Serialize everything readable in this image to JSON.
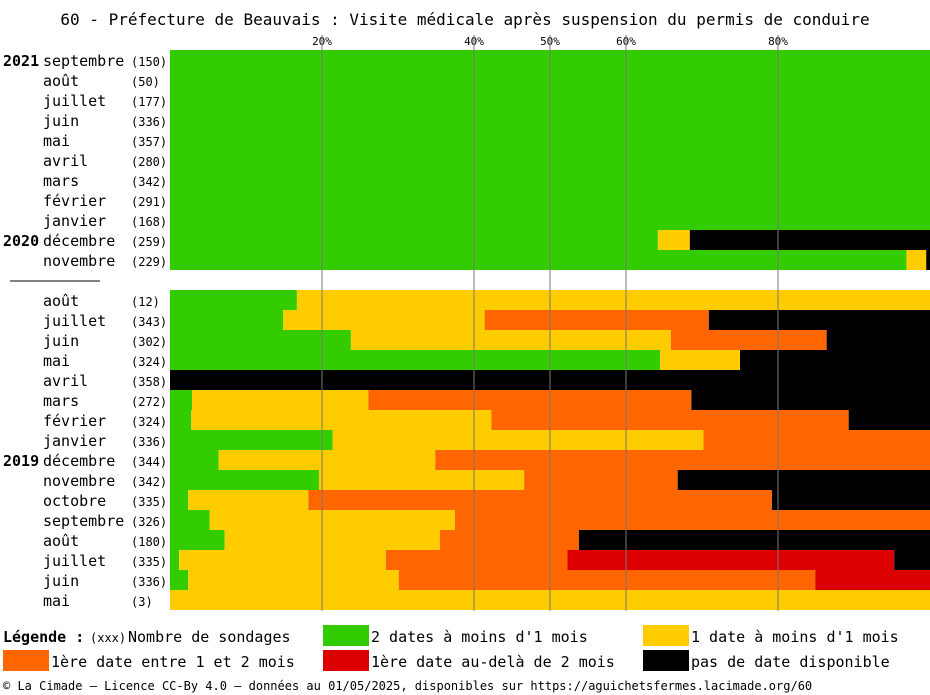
{
  "chart_data": {
    "type": "bar",
    "orientation": "horizontal",
    "stacked": true,
    "title": "60 - Préfecture de Beauvais : Visite médicale après suspension du permis de conduire",
    "xlim": [
      0,
      100
    ],
    "x_ticks": [
      {
        "value": 20,
        "label": "20%"
      },
      {
        "value": 40,
        "label": "40%"
      },
      {
        "value": 50,
        "label": "50%"
      },
      {
        "value": 60,
        "label": "60%"
      },
      {
        "value": 80,
        "label": "80%"
      }
    ],
    "grid": true,
    "colors": {
      "two_dates": "#33cc00",
      "one_date": "#ffcc00",
      "first_1_2": "#ff6600",
      "first_over_2": "#dd0000",
      "none": "#000000"
    },
    "segment_order": [
      "two_dates",
      "one_date",
      "first_1_2",
      "first_over_2",
      "none"
    ],
    "rows": [
      {
        "year": "2021",
        "month": "septembre",
        "count": "(150)",
        "values": [
          100,
          0,
          0,
          0,
          0
        ]
      },
      {
        "year": "",
        "month": "août",
        "count": "(50)",
        "values": [
          100,
          0,
          0,
          0,
          0
        ]
      },
      {
        "year": "",
        "month": "juillet",
        "count": "(177)",
        "values": [
          100,
          0,
          0,
          0,
          0
        ]
      },
      {
        "year": "",
        "month": "juin",
        "count": "(336)",
        "values": [
          100,
          0,
          0,
          0,
          0
        ]
      },
      {
        "year": "",
        "month": "mai",
        "count": "(357)",
        "values": [
          100,
          0,
          0,
          0,
          0
        ]
      },
      {
        "year": "",
        "month": "avril",
        "count": "(280)",
        "values": [
          100,
          0,
          0,
          0,
          0
        ]
      },
      {
        "year": "",
        "month": "mars",
        "count": "(342)",
        "values": [
          100,
          0,
          0,
          0,
          0
        ]
      },
      {
        "year": "",
        "month": "février",
        "count": "(291)",
        "values": [
          100,
          0,
          0,
          0,
          0
        ]
      },
      {
        "year": "",
        "month": "janvier",
        "count": "(168)",
        "values": [
          100,
          0,
          0,
          0,
          0
        ]
      },
      {
        "year": "2020",
        "month": "décembre",
        "count": "(259)",
        "values": [
          64.2,
          4.2,
          0,
          0,
          31.6
        ]
      },
      {
        "year": "",
        "month": "novembre",
        "count": "(229)",
        "values": [
          96.9,
          2.6,
          0,
          0,
          0.5
        ],
        "separator_after": true
      },
      {
        "year": "",
        "month": "août",
        "count": "(12)",
        "values": [
          16.7,
          83.3,
          0,
          0,
          0
        ]
      },
      {
        "year": "",
        "month": "juillet",
        "count": "(343)",
        "values": [
          14.9,
          26.5,
          29.5,
          0,
          29.1
        ]
      },
      {
        "year": "",
        "month": "juin",
        "count": "(302)",
        "values": [
          23.8,
          42.1,
          20.5,
          0,
          13.6
        ]
      },
      {
        "year": "",
        "month": "mai",
        "count": "(324)",
        "values": [
          64.5,
          10.5,
          0,
          0,
          25.0
        ]
      },
      {
        "year": "",
        "month": "avril",
        "count": "(358)",
        "values": [
          0,
          0,
          0,
          0,
          100
        ]
      },
      {
        "year": "",
        "month": "mars",
        "count": "(272)",
        "values": [
          2.9,
          23.2,
          42.5,
          0,
          31.4
        ]
      },
      {
        "year": "",
        "month": "février",
        "count": "(324)",
        "values": [
          2.8,
          39.5,
          47.0,
          0,
          10.7
        ]
      },
      {
        "year": "",
        "month": "janvier",
        "count": "(336)",
        "values": [
          21.4,
          48.8,
          29.8,
          0,
          0
        ]
      },
      {
        "year": "2019",
        "month": "décembre",
        "count": "(344)",
        "values": [
          6.4,
          28.5,
          65.1,
          0,
          0
        ]
      },
      {
        "year": "",
        "month": "novembre",
        "count": "(342)",
        "values": [
          19.6,
          27.0,
          20.2,
          0,
          33.2
        ]
      },
      {
        "year": "",
        "month": "octobre",
        "count": "(335)",
        "values": [
          2.4,
          15.8,
          61.0,
          0,
          20.8
        ]
      },
      {
        "year": "",
        "month": "septembre",
        "count": "(326)",
        "values": [
          5.2,
          32.3,
          62.5,
          0,
          0
        ]
      },
      {
        "year": "",
        "month": "août",
        "count": "(180)",
        "values": [
          7.2,
          28.3,
          18.3,
          0,
          46.2
        ]
      },
      {
        "year": "",
        "month": "juillet",
        "count": "(335)",
        "values": [
          1.2,
          27.2,
          23.9,
          43.0,
          4.7
        ]
      },
      {
        "year": "",
        "month": "juin",
        "count": "(336)",
        "values": [
          2.4,
          27.7,
          54.8,
          15.1,
          0
        ]
      },
      {
        "year": "",
        "month": "mai",
        "count": "(3)",
        "values": [
          0,
          100,
          0,
          0,
          0
        ]
      }
    ],
    "legend": {
      "title": "Légende :",
      "count_note": "(xxx)",
      "count_label": "Nombre de sondages",
      "items": [
        {
          "key": "two_dates",
          "label": "2 dates à moins d'1 mois"
        },
        {
          "key": "one_date",
          "label": "1 date à moins d'1 mois"
        },
        {
          "key": "first_1_2",
          "label": "1ère date entre 1 et 2 mois"
        },
        {
          "key": "first_over_2",
          "label": "1ère date au-delà de 2 mois"
        },
        {
          "key": "none",
          "label": "pas de date disponible"
        }
      ]
    },
    "footer": "© La Cimade — Licence CC-By 4.0 — données au 01/05/2025, disponibles sur https://aguichetsfermes.lacimade.org/60"
  }
}
